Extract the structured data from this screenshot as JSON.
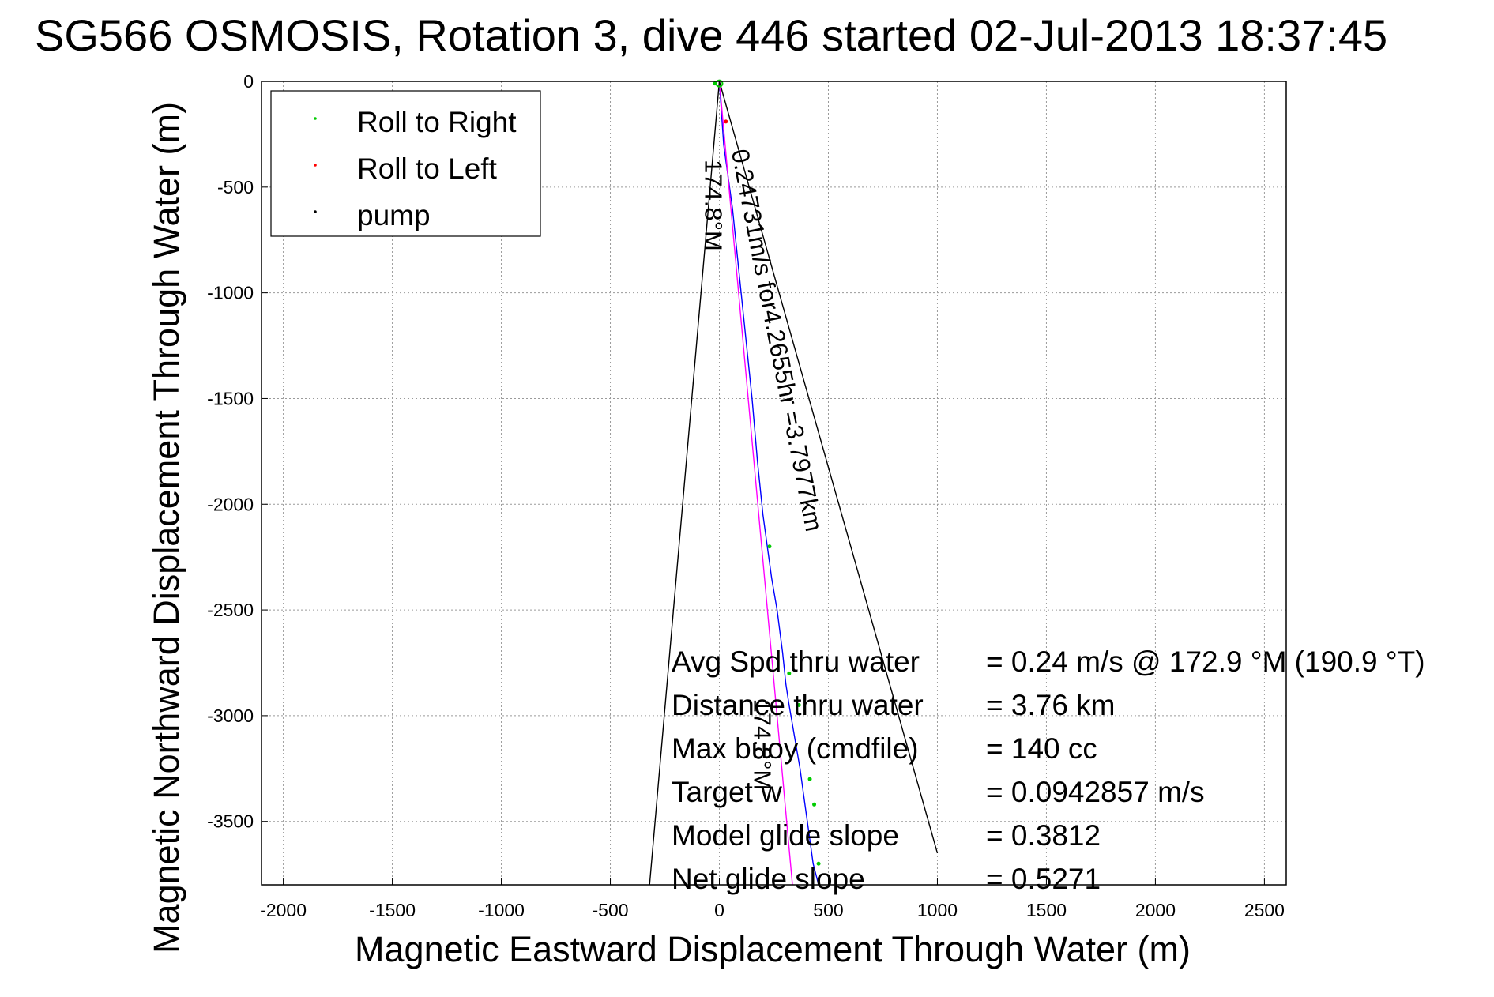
{
  "chart_data": {
    "type": "line",
    "title": "SG566 OSMOSIS, Rotation 3, dive 446 started 02-Jul-2013 18:37:45",
    "xlabel": "Magnetic Eastward Displacement Through Water (m)",
    "ylabel": "Magnetic Northward Displacement Through Water (m)",
    "xlim": [
      -2100,
      2600
    ],
    "ylim": [
      -3800,
      0
    ],
    "xticks": [
      -2000,
      -1500,
      -1000,
      -500,
      0,
      500,
      1000,
      1500,
      2000,
      2500
    ],
    "yticks": [
      0,
      -500,
      -1000,
      -1500,
      -2000,
      -2500,
      -3000,
      -3500
    ],
    "grid": true,
    "legend": {
      "placement": "top-left",
      "entries": [
        {
          "label": "Roll to Right",
          "color": "#00cc00"
        },
        {
          "label": "Roll to Left",
          "color": "#ff0000"
        },
        {
          "label": "pump",
          "color": "#000000"
        }
      ]
    },
    "series": [
      {
        "color": "#0000ff",
        "x": [
          0,
          20,
          60,
          90,
          120,
          150,
          175,
          200,
          220,
          240,
          265,
          290,
          305,
          320,
          345,
          370,
          390,
          410,
          430,
          455
        ],
        "y": [
          0,
          -300,
          -600,
          -900,
          -1200,
          -1500,
          -1800,
          -2050,
          -2200,
          -2350,
          -2500,
          -2700,
          -2850,
          -2950,
          -3100,
          -3250,
          -3400,
          -3550,
          -3700,
          -3800
        ]
      },
      {
        "color": "#ff00ff",
        "x": [
          0,
          335
        ],
        "y": [
          0,
          -3800
        ]
      },
      {
        "color": "#000000",
        "x": [
          0,
          1000
        ],
        "y": [
          0,
          -3650
        ]
      },
      {
        "color": "#000000",
        "x": [
          0,
          -320
        ],
        "y": [
          0,
          -3800
        ]
      }
    ],
    "markers": {
      "roll_right": {
        "color": "#00cc00",
        "x": [
          -20,
          230,
          320,
          365,
          415,
          435,
          455
        ],
        "y": [
          -10,
          -2200,
          -2800,
          -2950,
          -3300,
          -3420,
          -3700
        ]
      },
      "roll_left": {
        "color": "#ff0000",
        "x": [
          30
        ],
        "y": [
          -190
        ]
      }
    },
    "annotations": [
      {
        "text": "0.24731m/s for4.2655hr =3.7977km",
        "x": 55,
        "y": -330,
        "rotation": 78.9
      },
      {
        "text": "174.8°M",
        "x": -65,
        "y": -370,
        "rotation": 90
      },
      {
        "text": "174.8°M",
        "x": 160,
        "y": -2920,
        "rotation": 90
      }
    ],
    "stats": [
      {
        "label": "Avg Spd thru water",
        "value": "=  0.24 m/s @ 172.9 °M (190.9 °T)"
      },
      {
        "label": "Distance thru water",
        "value": "=  3.76 km"
      },
      {
        "label": "Max buoy (cmdfile)",
        "value": "= 140 cc"
      },
      {
        "label": "Target w",
        "value": "= 0.0942857 m/s"
      },
      {
        "label": "Model glide slope",
        "value": "= 0.3812"
      },
      {
        "label": "Net glide slope",
        "value": "= 0.5271"
      }
    ]
  }
}
